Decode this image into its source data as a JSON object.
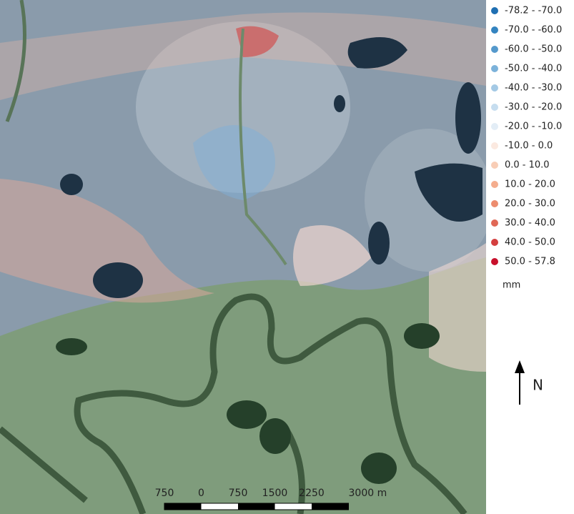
{
  "legend": {
    "items": [
      {
        "label": "-78.2 - -70.0",
        "color": "#1f6fb2"
      },
      {
        "label": "-70.0 - -60.0",
        "color": "#3484c0"
      },
      {
        "label": "-60.0 - -50.0",
        "color": "#5599cc"
      },
      {
        "label": "-50.0 - -40.0",
        "color": "#7cb2da"
      },
      {
        "label": "-40.0 - -30.0",
        "color": "#a4c9e5"
      },
      {
        "label": "-30.0 - -20.0",
        "color": "#c6ddef"
      },
      {
        "label": "-20.0 - -10.0",
        "color": "#e3edf6"
      },
      {
        "label": "-10.0 - 0.0",
        "color": "#fbe9e0"
      },
      {
        "label": "0.0 - 10.0",
        "color": "#f8cdb6"
      },
      {
        "label": "10.0 - 20.0",
        "color": "#f4ad8e"
      },
      {
        "label": "20.0 - 30.0",
        "color": "#ec8c6e"
      },
      {
        "label": "30.0 - 40.0",
        "color": "#e06856"
      },
      {
        "label": "40.0 - 50.0",
        "color": "#d43f3f"
      },
      {
        "label": "50.0 - 57.8",
        "color": "#c8102b"
      }
    ],
    "unit": "mm"
  },
  "scale_bar": {
    "labels": [
      "750",
      "0",
      "750",
      "1500",
      "2250",
      "3000 m"
    ]
  },
  "north": "N"
}
